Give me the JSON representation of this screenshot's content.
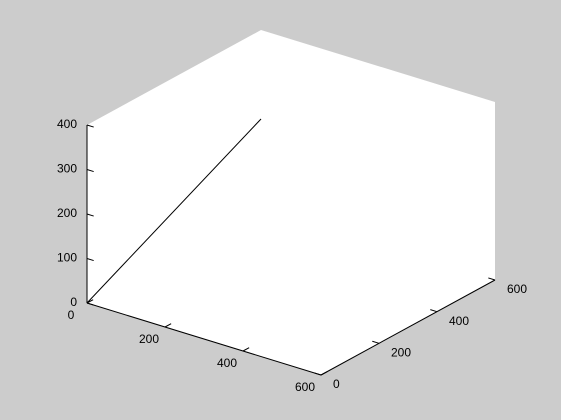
{
  "chart_data": {
    "type": "line",
    "dimensions": 3,
    "x_axis": {
      "ticks": [
        0,
        200,
        400,
        600
      ],
      "tick_labels": [
        "0",
        "200",
        "400",
        "600"
      ],
      "lim": [
        0,
        600
      ]
    },
    "y_axis": {
      "ticks": [
        0,
        200,
        400,
        600
      ],
      "tick_labels": [
        "0",
        "200",
        "400",
        "600"
      ],
      "lim": [
        0,
        600
      ]
    },
    "z_axis": {
      "ticks": [
        0,
        100,
        200,
        300,
        400
      ],
      "tick_labels": [
        "0",
        "100",
        "200",
        "300",
        "400"
      ],
      "lim": [
        0,
        400
      ]
    },
    "series": [
      {
        "points": [
          {
            "x": 0,
            "y": 0,
            "z": 0
          },
          {
            "x": 0,
            "y": 600,
            "z": 200
          }
        ]
      }
    ],
    "grid": false,
    "box": true,
    "colors": {
      "figure_background": "#cccccc",
      "axes_background": "#ffffff",
      "line": "#000000",
      "axis": "#000000"
    }
  }
}
